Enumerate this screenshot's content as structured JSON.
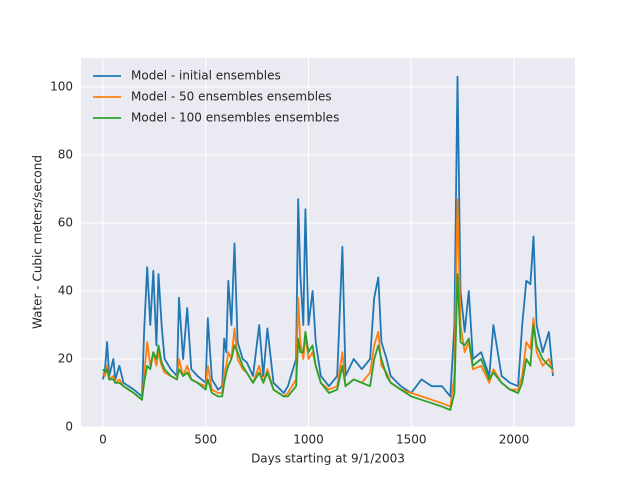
{
  "chart_data": {
    "type": "line",
    "x_label": "Days starting at 9/1/2003",
    "y_label": "Water - Cubic meters/second",
    "x": [
      0,
      10,
      20,
      30,
      50,
      60,
      80,
      100,
      150,
      190,
      200,
      215,
      230,
      245,
      260,
      270,
      285,
      300,
      330,
      360,
      370,
      390,
      410,
      430,
      460,
      500,
      510,
      530,
      560,
      580,
      590,
      600,
      610,
      625,
      640,
      655,
      680,
      700,
      730,
      760,
      780,
      800,
      830,
      880,
      900,
      940,
      950,
      960,
      975,
      985,
      1000,
      1020,
      1035,
      1060,
      1100,
      1140,
      1165,
      1180,
      1220,
      1260,
      1300,
      1320,
      1340,
      1355,
      1380,
      1400,
      1450,
      1500,
      1550,
      1600,
      1650,
      1690,
      1710,
      1725,
      1740,
      1760,
      1780,
      1800,
      1840,
      1880,
      1900,
      1940,
      1980,
      2020,
      2040,
      2060,
      2080,
      2095,
      2110,
      2140,
      2170,
      2190
    ],
    "series": [
      {
        "name": "Model - initial ensembles",
        "color": "#1f77b4",
        "values": [
          14,
          17,
          25,
          15,
          20,
          14,
          18,
          13,
          11,
          9,
          28,
          47,
          30,
          46,
          24,
          45,
          30,
          20,
          17,
          15,
          38,
          20,
          35,
          17,
          15,
          13,
          32,
          14,
          11,
          12,
          26,
          22,
          43,
          30,
          54,
          25,
          20,
          19,
          15,
          30,
          15,
          29,
          13,
          10,
          12,
          20,
          67,
          45,
          30,
          64,
          30,
          40,
          25,
          15,
          12,
          15,
          53,
          15,
          20,
          17,
          20,
          38,
          44,
          25,
          20,
          15,
          12,
          10,
          14,
          12,
          12,
          9,
          30,
          103,
          40,
          28,
          40,
          20,
          22,
          15,
          30,
          15,
          13,
          12,
          30,
          43,
          42,
          56,
          30,
          22,
          28,
          15
        ]
      },
      {
        "name": "Model - 50 ensembles ensembles",
        "color": "#ff7f0e",
        "values": [
          16,
          15,
          18,
          14,
          15,
          13,
          14,
          12,
          10,
          8,
          15,
          25,
          18,
          22,
          18,
          22,
          18,
          16,
          15,
          14,
          20,
          15,
          18,
          14,
          13,
          12,
          18,
          11,
          10,
          10,
          16,
          18,
          22,
          20,
          29,
          20,
          17,
          16,
          13,
          18,
          13,
          17,
          11,
          9,
          10,
          14,
          38,
          25,
          20,
          27,
          20,
          22,
          18,
          13,
          11,
          12,
          22,
          12,
          14,
          13,
          16,
          24,
          28,
          18,
          16,
          13,
          11,
          10,
          9,
          8,
          7,
          6,
          15,
          67,
          30,
          22,
          25,
          17,
          18,
          13,
          17,
          13,
          11,
          11,
          15,
          25,
          23,
          32,
          22,
          18,
          20,
          16
        ]
      },
      {
        "name": "Model - 100 ensembles ensembles",
        "color": "#2ca02c",
        "values": [
          17,
          16,
          17,
          14,
          14,
          13,
          13,
          12,
          10,
          8,
          13,
          18,
          17,
          22,
          20,
          24,
          19,
          17,
          15,
          14,
          17,
          15,
          16,
          14,
          13,
          11,
          14,
          10,
          9,
          9,
          13,
          16,
          18,
          20,
          24,
          22,
          18,
          16,
          13,
          16,
          13,
          16,
          11,
          9,
          9,
          12,
          26,
          22,
          22,
          28,
          22,
          24,
          18,
          13,
          10,
          11,
          18,
          12,
          14,
          13,
          12,
          20,
          24,
          20,
          15,
          13,
          11,
          9,
          8,
          7,
          6,
          5,
          10,
          45,
          25,
          24,
          26,
          18,
          20,
          14,
          16,
          13,
          11,
          10,
          13,
          20,
          18,
          30,
          24,
          20,
          18,
          17
        ]
      }
    ],
    "xlim": [
      -107,
      2297
    ],
    "ylim": [
      0,
      108.5
    ],
    "xticks": [
      0,
      500,
      1000,
      1500,
      2000
    ],
    "yticks": [
      0,
      20,
      40,
      60,
      80,
      100
    ],
    "grid": true,
    "legend": "upper left"
  }
}
